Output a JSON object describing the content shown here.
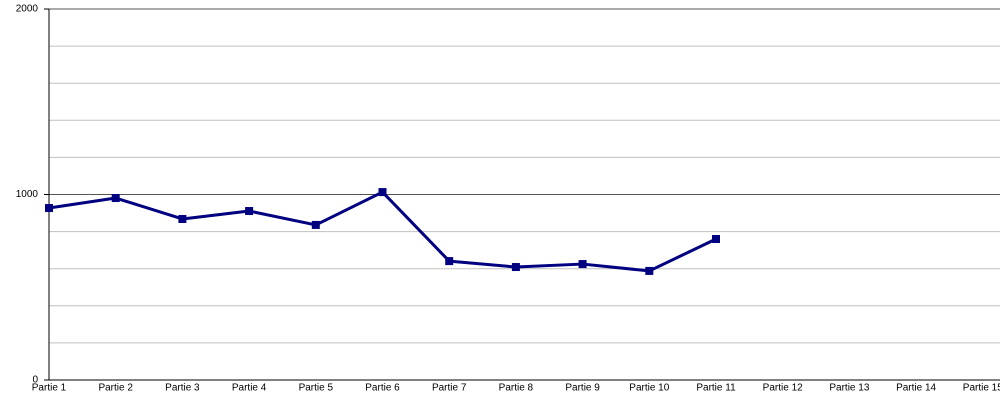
{
  "chart_data": {
    "type": "line",
    "categories": [
      "Partie 1",
      "Partie 2",
      "Partie 3",
      "Partie 4",
      "Partie 5",
      "Partie 6",
      "Partie 7",
      "Partie 8",
      "Partie 9",
      "Partie 10",
      "Partie 11",
      "Partie 12",
      "Partie 13",
      "Partie 14",
      "Partie 15"
    ],
    "series": [
      {
        "color": "#000080",
        "values": [
          927,
          981,
          868,
          911,
          836,
          1013,
          641,
          609,
          625,
          588,
          760,
          null,
          null,
          null,
          null
        ]
      }
    ],
    "ylim": [
      0,
      2000
    ],
    "yticks": [
      0,
      1000,
      2000
    ],
    "minor_yticks": [
      200,
      400,
      600,
      800,
      1200,
      1400,
      1600,
      1800
    ],
    "grid": true
  }
}
